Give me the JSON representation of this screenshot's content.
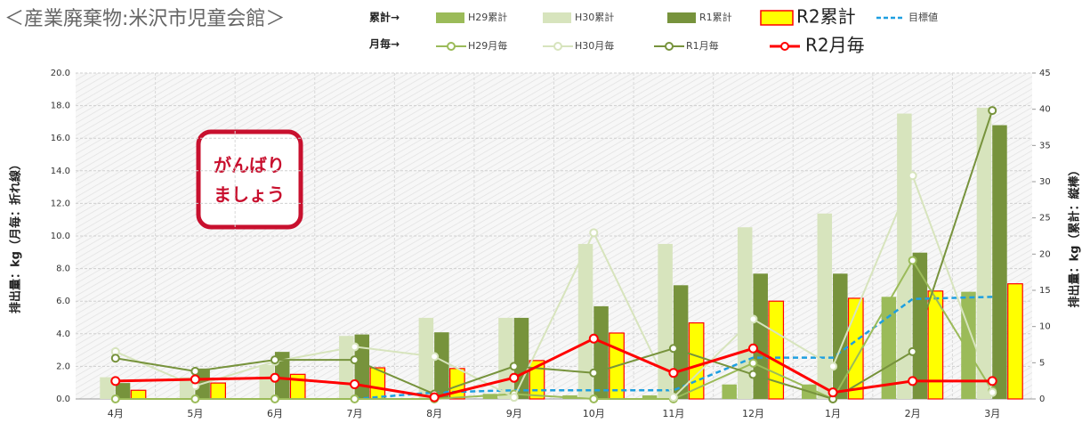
{
  "chart_data": {
    "type": "combo",
    "title": "＜産業廃棄物:米沢市児童会館＞",
    "legend_labels": [
      "累計→",
      "月毎→"
    ],
    "stamp": [
      "がんばり",
      "ましょう"
    ],
    "ylabel": "排出量：kg（月毎：折れ線）",
    "y2label": "排出量：kg（累計：縦棒）",
    "categories": [
      "4月",
      "5月",
      "6月",
      "7月",
      "8月",
      "9月",
      "10月",
      "11月",
      "12月",
      "1月",
      "2月",
      "3月"
    ],
    "ylim": [
      0,
      20
    ],
    "yticks": [
      {
        "value": 0,
        "label": "0.0"
      },
      {
        "value": 2,
        "label": "2.0"
      },
      {
        "value": 4,
        "label": "4.0"
      },
      {
        "value": 6,
        "label": "6.0"
      },
      {
        "value": 8,
        "label": "8.0"
      },
      {
        "value": 10,
        "label": "10.0"
      },
      {
        "value": 12,
        "label": "12.0"
      },
      {
        "value": 14,
        "label": "14.0"
      },
      {
        "value": 16,
        "label": "16.0"
      },
      {
        "value": 18,
        "label": "18.0"
      },
      {
        "value": 20,
        "label": "20.0"
      }
    ],
    "y2lim": [
      0,
      45
    ],
    "y2ticks": [
      0,
      5,
      10,
      15,
      20,
      25,
      30,
      35,
      40,
      45
    ],
    "grid": true,
    "series": [
      {
        "name": "H29累計",
        "type": "bar",
        "axis": "y2",
        "color": "#9bbb59",
        "values": [
          0,
          0,
          0,
          0,
          0,
          0.7,
          0.5,
          0.5,
          2,
          2,
          14.1,
          14.8
        ]
      },
      {
        "name": "H30累計",
        "type": "bar",
        "axis": "y2",
        "color": "#d7e4bd",
        "values": [
          3.0,
          3.0,
          4.7,
          8.7,
          11.2,
          11.2,
          21.4,
          21.4,
          23.7,
          25.6,
          39.4,
          40.2
        ]
      },
      {
        "name": "R1累計",
        "type": "bar",
        "axis": "y2",
        "color": "#77933c",
        "values": [
          2.2,
          4.2,
          6.5,
          8.9,
          9.2,
          11.2,
          12.8,
          15.7,
          17.3,
          17.3,
          20.2,
          37.8
        ]
      },
      {
        "name": "R2累計",
        "type": "bar",
        "axis": "y2",
        "color": "#ffff00",
        "edge": "#ff0000",
        "values": [
          1.2,
          2.2,
          3.4,
          4.3,
          4.2,
          5.3,
          9.1,
          10.5,
          13.5,
          13.9,
          14.9,
          15.9
        ]
      },
      {
        "name": "目標値",
        "type": "dash",
        "axis": "y2",
        "color": "#1e9fe0",
        "values": [
          null,
          null,
          null,
          0,
          0.9,
          1.2,
          1.2,
          1.2,
          5.7,
          5.7,
          13.8,
          14.1
        ]
      },
      {
        "name": "H29月毎",
        "type": "line",
        "color": "#9bbb59",
        "values": [
          0,
          0,
          0,
          0,
          0,
          0.3,
          0,
          0,
          2.2,
          0,
          8.5,
          0.5
        ]
      },
      {
        "name": "H30月毎",
        "type": "line",
        "color": "#d7e4bd",
        "values": [
          2.9,
          0.8,
          2.3,
          3.2,
          2.6,
          0.1,
          10.2,
          0.1,
          4.9,
          2.0,
          13.7,
          0.4
        ]
      },
      {
        "name": "R1月毎",
        "type": "line",
        "color": "#77933c",
        "values": [
          2.5,
          1.7,
          2.4,
          2.4,
          0.3,
          2.0,
          1.6,
          3.1,
          1.5,
          0,
          2.9,
          17.7
        ]
      },
      {
        "name": "R2月毎",
        "type": "line",
        "color": "#ff0000",
        "big": true,
        "values": [
          1.1,
          1.2,
          1.3,
          0.9,
          0.1,
          1.3,
          3.7,
          1.6,
          3.1,
          0.4,
          1.1,
          1.1
        ]
      }
    ]
  }
}
